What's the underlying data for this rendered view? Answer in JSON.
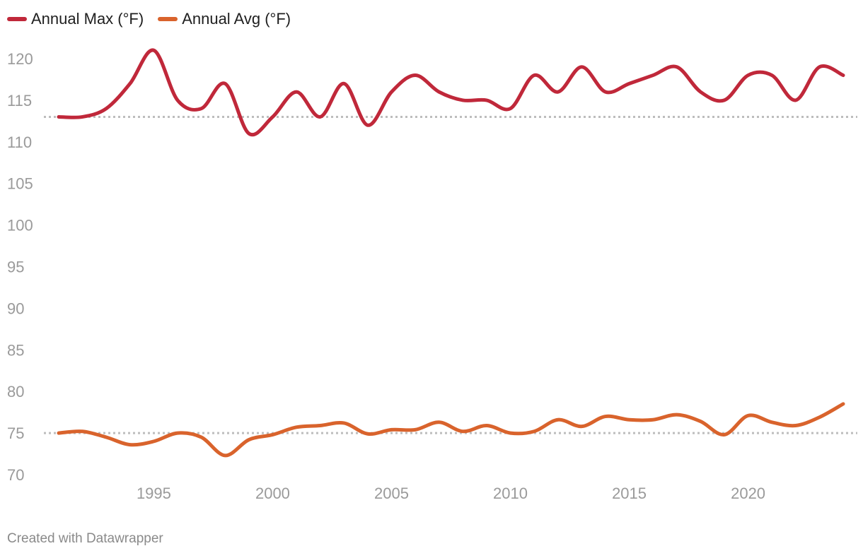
{
  "legend": {
    "max_label": "Annual Max (°F)",
    "avg_label": "Annual Avg (°F)"
  },
  "footer": {
    "credit": "Created with Datawrapper"
  },
  "colors": {
    "max": "#c0283a",
    "avg": "#d9632c",
    "reference": "#bdbdbd",
    "tick": "#9a9a9a"
  },
  "chart_data": {
    "type": "line",
    "title": "",
    "xlabel": "",
    "ylabel": "",
    "x": [
      1991,
      1992,
      1993,
      1994,
      1995,
      1996,
      1997,
      1998,
      1999,
      2000,
      2001,
      2002,
      2003,
      2004,
      2005,
      2006,
      2007,
      2008,
      2009,
      2010,
      2011,
      2012,
      2013,
      2014,
      2015,
      2016,
      2017,
      2018,
      2019,
      2020,
      2021,
      2022,
      2023,
      2024
    ],
    "series": [
      {
        "name": "Annual Max (°F)",
        "values": [
          113,
          113,
          114,
          117,
          121,
          115,
          114,
          117,
          111,
          113,
          116,
          113,
          117,
          112,
          116,
          118,
          116,
          115,
          115,
          114,
          118,
          116,
          119,
          116,
          117,
          118,
          119,
          116,
          115,
          118,
          118,
          115,
          119,
          118
        ]
      },
      {
        "name": "Annual Avg (°F)",
        "values": [
          75.0,
          75.2,
          74.5,
          73.6,
          74.0,
          75.0,
          74.5,
          72.3,
          74.2,
          74.8,
          75.7,
          75.9,
          76.2,
          74.9,
          75.4,
          75.4,
          76.3,
          75.2,
          75.9,
          75.0,
          75.2,
          76.6,
          75.8,
          77.0,
          76.6,
          76.6,
          77.2,
          76.4,
          74.8,
          77.1,
          76.3,
          75.9,
          76.9,
          78.5
        ]
      }
    ],
    "reference_lines": [
      113,
      75
    ],
    "xticks": [
      1995,
      2000,
      2005,
      2010,
      2015,
      2020
    ],
    "yticks": [
      70,
      75,
      80,
      85,
      90,
      95,
      100,
      105,
      110,
      115,
      120
    ],
    "xlim": [
      1991,
      2024
    ],
    "ylim": [
      70,
      122
    ],
    "grid": false,
    "legend_position": "top-left"
  }
}
